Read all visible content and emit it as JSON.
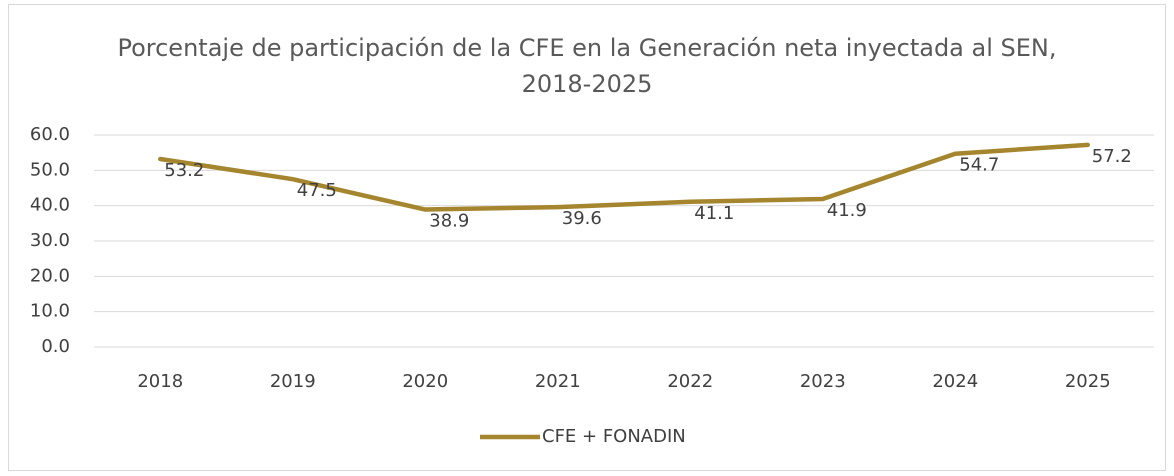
{
  "chart_data": {
    "type": "line",
    "title": "Porcentaje de participación de la CFE en la Generación neta inyectada al SEN, 2018-2025",
    "categories": [
      "2018",
      "2019",
      "2020",
      "2021",
      "2022",
      "2023",
      "2024",
      "2025"
    ],
    "series": [
      {
        "name": "CFE + FONADIN",
        "color": "#a5852e",
        "values": [
          53.2,
          47.5,
          38.9,
          39.6,
          41.1,
          41.9,
          54.7,
          57.2
        ]
      }
    ],
    "ylim": [
      0,
      60
    ],
    "yticks": [
      {
        "value": 0,
        "label": "0.0"
      },
      {
        "value": 10,
        "label": "10.0"
      },
      {
        "value": 20,
        "label": "20.0"
      },
      {
        "value": 30,
        "label": "30.0"
      },
      {
        "value": 40,
        "label": "40.0"
      },
      {
        "value": 50,
        "label": "50.0"
      },
      {
        "value": 60,
        "label": "60.0"
      }
    ],
    "grid": true,
    "legend": "bottom"
  }
}
